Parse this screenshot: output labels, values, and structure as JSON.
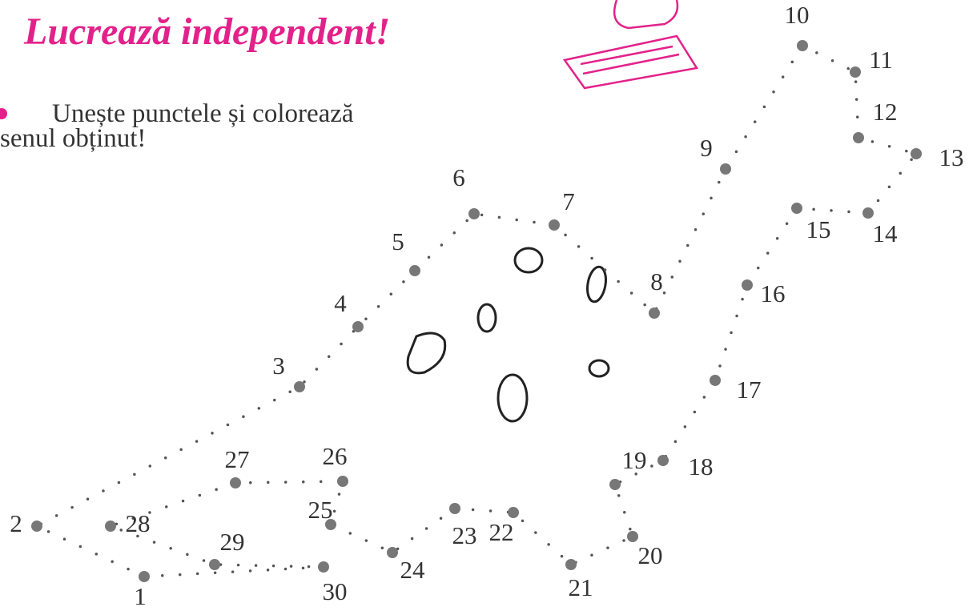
{
  "header": {
    "title": "Lucrează independent!"
  },
  "instructions": [
    "Unește punctele și colorează",
    "senul obținut!"
  ],
  "points": [
    "1",
    "2",
    "3",
    "4",
    "5",
    "6",
    "7",
    "8",
    "9",
    "10",
    "11",
    "12",
    "13",
    "14",
    "15",
    "16",
    "17",
    "18",
    "19",
    "20",
    "21",
    "22",
    "23",
    "24",
    "25",
    "26",
    "27",
    "28",
    "29",
    "30"
  ]
}
